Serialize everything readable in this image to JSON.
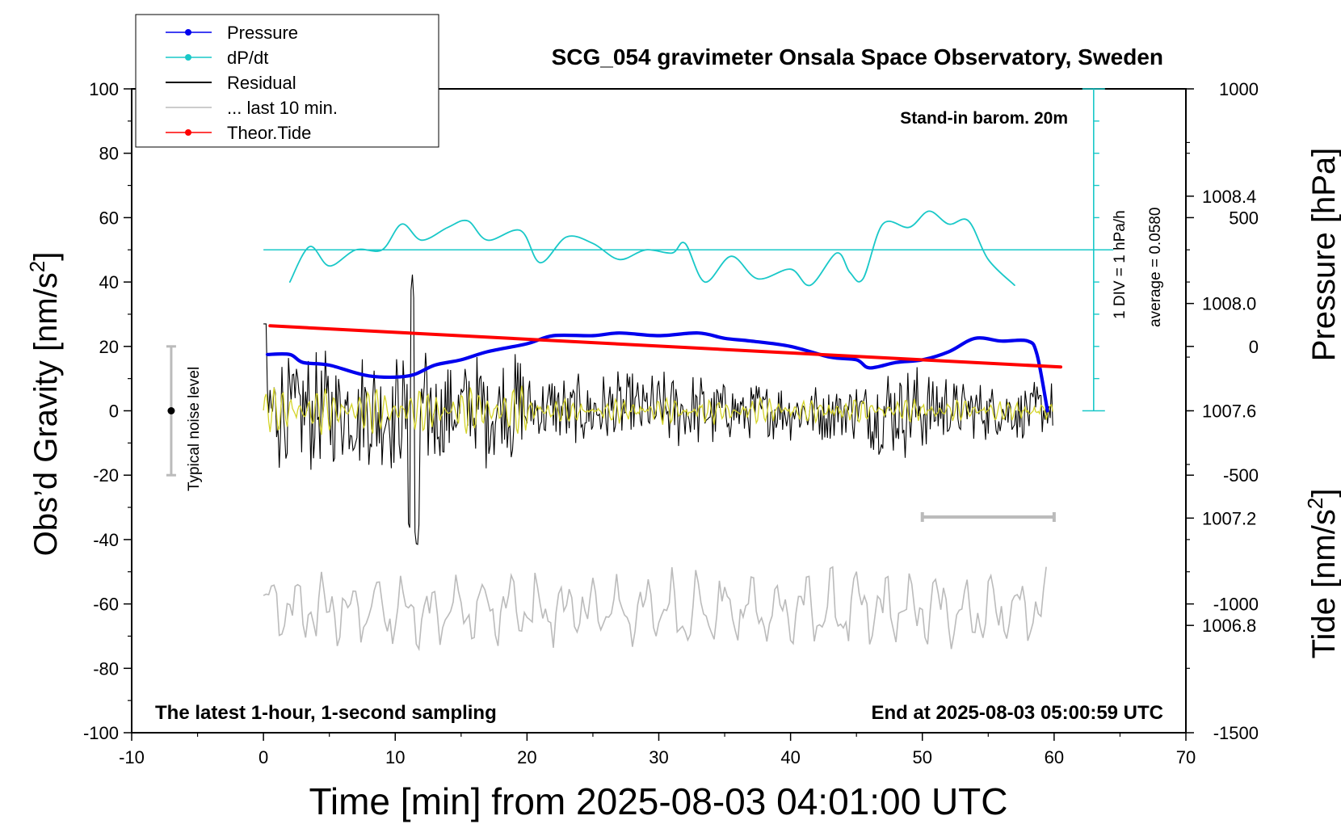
{
  "chart_data": {
    "type": "line",
    "title": "SCG_054 gravimeter Onsala Space Observatory, Sweden",
    "xlabel": "Time [min] from 2025-08-03 04:01:00 UTC",
    "ylabel_left_main": "Obs’d Gravity [nm/s",
    "ylabel_left_sup": "2",
    "ylabel_left_end": "]",
    "ylabel_right_pressure": "Pressure [hPa]",
    "ylabel_right_tide_main": "Tide [nm/s",
    "ylabel_right_tide_sup": "2",
    "ylabel_right_tide_end": "]",
    "xlim": [
      -10,
      70
    ],
    "ylim_gravity": [
      -100,
      100
    ],
    "ylim_pressure": [
      1006.4,
      1008.8
    ],
    "ylim_tide": [
      -1500,
      1000
    ],
    "x_ticks": [
      "-10",
      "0",
      "10",
      "20",
      "30",
      "40",
      "50",
      "60",
      "70"
    ],
    "y_ticks_gravity": [
      "-100",
      "-80",
      "-60",
      "-40",
      "-20",
      "0",
      "20",
      "40",
      "60",
      "80",
      "100"
    ],
    "y_ticks_pressure": [
      "1006.8",
      "1007.2",
      "1007.6",
      "1008.0",
      "1008.4"
    ],
    "y_ticks_tide": [
      "-1500",
      "-1000",
      "-500",
      "0",
      "500",
      "1000"
    ],
    "annotations": {
      "stand_in": "Stand-in barom. 20m",
      "latest": "The latest 1-hour, 1-second sampling",
      "end_at": "End at 2025-08-03 05:00:59 UTC",
      "div_label": "1 DIV = 1 hPa/h",
      "average_label": "average = 0.0580",
      "noise_label": "Typical noise level"
    },
    "legend": [
      {
        "name": "Pressure",
        "color": "#0000ee",
        "marker": true
      },
      {
        "name": "dP/dt",
        "color": "#19c8c8",
        "marker": true
      },
      {
        "name": "Residual",
        "color": "#000000",
        "marker": false
      },
      {
        "name": "... last 10 min.",
        "color": "#bbbbbb",
        "marker": false
      },
      {
        "name": "Theor.Tide",
        "color": "#ff0000",
        "marker": true
      }
    ],
    "series": [
      {
        "name": "Pressure",
        "color": "#0000ee",
        "axis": "pressure",
        "x": [
          0.3,
          2,
          3,
          5,
          8,
          11,
          13,
          15,
          17,
          20,
          22,
          25,
          27,
          30,
          33,
          35,
          37,
          40,
          43,
          45,
          46,
          48,
          50,
          52,
          54,
          56,
          58,
          58.7,
          59.5
        ],
        "y": [
          1007.81,
          1007.81,
          1007.78,
          1007.77,
          1007.73,
          1007.73,
          1007.77,
          1007.79,
          1007.82,
          1007.85,
          1007.88,
          1007.88,
          1007.89,
          1007.88,
          1007.89,
          1007.87,
          1007.86,
          1007.84,
          1007.8,
          1007.79,
          1007.76,
          1007.78,
          1007.79,
          1007.82,
          1007.87,
          1007.86,
          1007.86,
          1007.81,
          1007.6
        ]
      },
      {
        "name": "dP/dt",
        "color": "#19c8c8",
        "axis": "gravity",
        "x": [
          2,
          3.5,
          5,
          7,
          9,
          10.5,
          12,
          14,
          15.5,
          17,
          19.5,
          21,
          23,
          25,
          27,
          29,
          31,
          32,
          33.5,
          35.5,
          37.5,
          40,
          41.5,
          43.5,
          44.5,
          45.5,
          47,
          49,
          50.5,
          52,
          53.5,
          55,
          57
        ],
        "y": [
          40,
          51,
          45,
          50,
          50,
          58,
          53,
          57,
          59,
          53,
          56,
          46,
          54,
          52,
          47,
          50,
          49,
          52,
          40,
          48,
          41,
          44,
          39,
          49,
          43,
          41,
          58,
          57,
          62,
          58,
          59,
          47,
          39
        ]
      },
      {
        "name": "Theor.Tide",
        "color": "#ff0000",
        "axis": "tide",
        "x": [
          0.5,
          60.5
        ],
        "y": [
          80,
          -80
        ]
      },
      {
        "name": "Residual",
        "color": "#000000",
        "axis": "gravity",
        "summary": "oscillates around 0, amplitude about ±15 early, spikes to +42 and -45 near 11 min, about ±8 after 35 min"
      },
      {
        "name": "... last 10 min.",
        "color": "#bbbbbb",
        "axis": "gravity",
        "summary": "oscillates between about -48 and -73 around -62, drawn below the residual"
      }
    ],
    "dpdt_zero_line": 50,
    "noise_bar": {
      "x": -7,
      "y_low": -20,
      "y_high": 20,
      "center": 0
    },
    "ten_min_bar": {
      "x_start": 50,
      "x_end": 60,
      "y": -33
    }
  }
}
